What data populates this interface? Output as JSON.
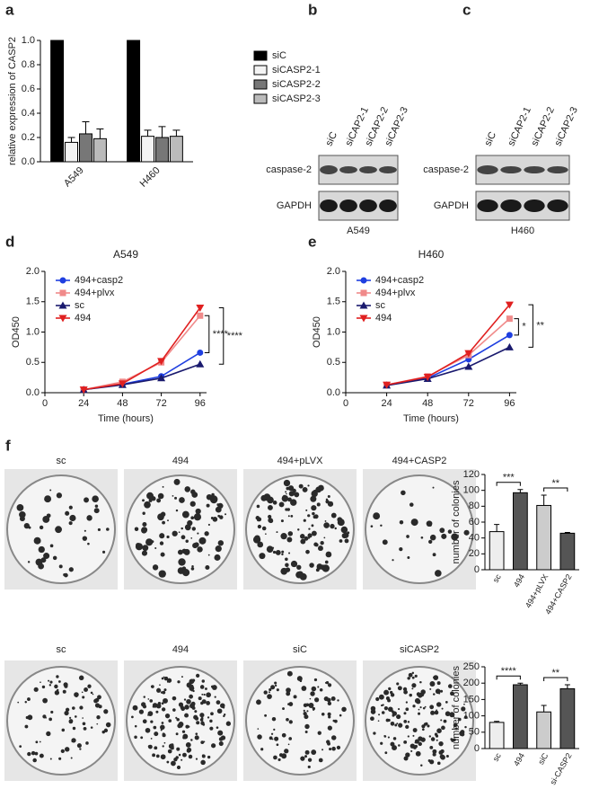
{
  "panel_labels": [
    "a",
    "b",
    "c",
    "d",
    "e",
    "f"
  ],
  "blots": [
    {
      "lanes": [
        "siC",
        "siCAP2-1",
        "siCAP2-2",
        "siCAP2-3"
      ],
      "rows": [
        "caspase-2",
        "GAPDH"
      ],
      "cell_line": "A549"
    },
    {
      "lanes": [
        "siC",
        "siCAP2-1",
        "siCAP2-2",
        "siCAP2-3"
      ],
      "rows": [
        "caspase-2",
        "GAPDH"
      ],
      "cell_line": "H460"
    }
  ],
  "colony_rows": [
    {
      "labels": [
        "sc",
        "494",
        "494+pLVX",
        "494+CASP2"
      ]
    },
    {
      "labels": [
        "sc",
        "494",
        "siC",
        "siCASP2"
      ]
    }
  ],
  "chart_data": [
    {
      "type": "bar",
      "ylabel": "relative expression of CASP2",
      "categories": [
        "A549",
        "H460"
      ],
      "series": [
        {
          "name": "siC",
          "color": "#000000",
          "values": [
            1.0,
            1.0
          ]
        },
        {
          "name": "siCASP2-1",
          "color": "#f4f4f4",
          "values": [
            0.16,
            0.21
          ],
          "errors": [
            0.04,
            0.05
          ]
        },
        {
          "name": "siCASP2-2",
          "color": "#777777",
          "values": [
            0.23,
            0.2
          ],
          "errors": [
            0.1,
            0.09
          ]
        },
        {
          "name": "siCASP2-3",
          "color": "#bbbbbb",
          "values": [
            0.19,
            0.21
          ],
          "errors": [
            0.08,
            0.05
          ]
        }
      ],
      "ylim": [
        0,
        1.0
      ],
      "yticks": [
        {
          "value": 0,
          "label": "0.0"
        },
        {
          "value": 0.2,
          "label": "0.2"
        },
        {
          "value": 0.4,
          "label": "0.4"
        },
        {
          "value": 0.6,
          "label": "0.6"
        },
        {
          "value": 0.8,
          "label": "0.8"
        },
        {
          "value": 1.0,
          "label": "1.0"
        }
      ]
    },
    {
      "type": "line",
      "title": "A549",
      "xlabel": "Time (hours)",
      "ylabel": "OD450",
      "x": [
        24,
        48,
        72,
        96
      ],
      "series": [
        {
          "name": "494+casp2",
          "color": "#1f3fe0",
          "marker": "circle",
          "values": [
            0.05,
            0.14,
            0.27,
            0.66
          ]
        },
        {
          "name": "494+plvx",
          "color": "#f08a8a",
          "marker": "square",
          "values": [
            0.05,
            0.18,
            0.5,
            1.27
          ]
        },
        {
          "name": "sc",
          "color": "#1a1a6e",
          "marker": "triangle-up",
          "values": [
            0.05,
            0.13,
            0.24,
            0.47
          ]
        },
        {
          "name": "494",
          "color": "#e02020",
          "marker": "triangle-down",
          "values": [
            0.05,
            0.15,
            0.52,
            1.4
          ]
        }
      ],
      "xlim": [
        0,
        100
      ],
      "xticks": [
        0,
        24,
        48,
        72,
        96
      ],
      "ylim": [
        0,
        2.0
      ],
      "yticks": [
        {
          "value": 0,
          "label": "0.0"
        },
        {
          "value": 0.5,
          "label": "0.5"
        },
        {
          "value": 1.0,
          "label": "1.0"
        },
        {
          "value": 1.5,
          "label": "1.5"
        },
        {
          "value": 2.0,
          "label": "2.0"
        }
      ],
      "annotations": [
        "****",
        "****"
      ]
    },
    {
      "type": "line",
      "title": "H460",
      "xlabel": "Time (hours)",
      "ylabel": "OD450",
      "x": [
        24,
        48,
        72,
        96
      ],
      "series": [
        {
          "name": "494+casp2",
          "color": "#1f3fe0",
          "marker": "circle",
          "values": [
            0.13,
            0.24,
            0.55,
            0.95
          ]
        },
        {
          "name": "494+plvx",
          "color": "#f08a8a",
          "marker": "square",
          "values": [
            0.13,
            0.27,
            0.62,
            1.22
          ]
        },
        {
          "name": "sc",
          "color": "#1a1a6e",
          "marker": "triangle-up",
          "values": [
            0.12,
            0.23,
            0.43,
            0.75
          ]
        },
        {
          "name": "494",
          "color": "#e02020",
          "marker": "triangle-down",
          "values": [
            0.13,
            0.26,
            0.65,
            1.45
          ]
        }
      ],
      "xlim": [
        0,
        100
      ],
      "xticks": [
        0,
        24,
        48,
        72,
        96
      ],
      "ylim": [
        0,
        2.0
      ],
      "yticks": [
        {
          "value": 0,
          "label": "0.0"
        },
        {
          "value": 0.5,
          "label": "0.5"
        },
        {
          "value": 1.0,
          "label": "1.0"
        },
        {
          "value": 1.5,
          "label": "1.5"
        },
        {
          "value": 2.0,
          "label": "2.0"
        }
      ],
      "annotations": [
        "*",
        "**"
      ]
    },
    {
      "type": "bar",
      "ylabel": "number of colonies",
      "categories": [
        "sc",
        "494",
        "494+pLVX",
        "494+CASP2"
      ],
      "values": [
        48,
        97,
        81,
        46
      ],
      "errors": [
        9,
        4,
        13,
        1
      ],
      "colors": [
        "#eeeeee",
        "#555555",
        "#cccccc",
        "#555555"
      ],
      "ylim": [
        0,
        120
      ],
      "yticks": [
        0,
        20,
        40,
        60,
        80,
        100,
        120
      ],
      "annotations": [
        "***",
        "**"
      ]
    },
    {
      "type": "bar",
      "ylabel": "number of colonies",
      "categories": [
        "sc",
        "494",
        "siC",
        "si-CASP2"
      ],
      "values": [
        80,
        195,
        112,
        183
      ],
      "errors": [
        3,
        5,
        20,
        12
      ],
      "colors": [
        "#eeeeee",
        "#555555",
        "#cccccc",
        "#555555"
      ],
      "ylim": [
        0,
        250
      ],
      "yticks": [
        0,
        50,
        100,
        150,
        200,
        250
      ],
      "annotations": [
        "****",
        "**"
      ]
    }
  ]
}
